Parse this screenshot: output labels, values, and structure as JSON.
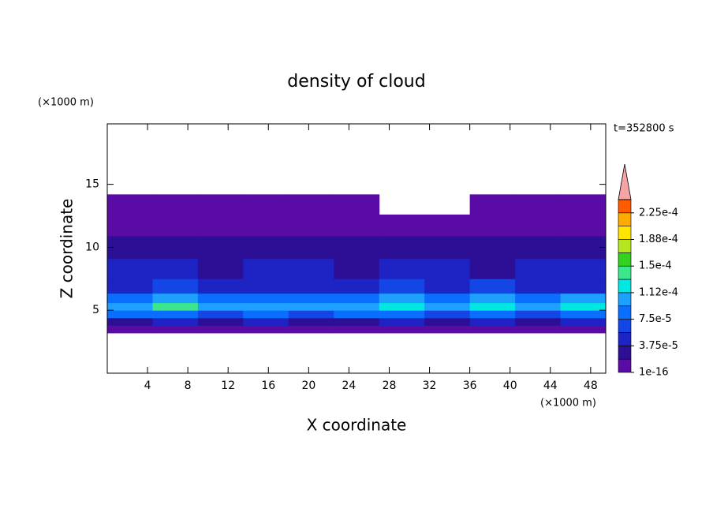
{
  "chart_data": {
    "type": "contour",
    "title": "density of cloud",
    "time_label": "t=352800 s",
    "x_label": "X coordinate",
    "y_label": "Z coordinate",
    "x_unit": "(×1000 m)",
    "y_unit": "(×1000 m)",
    "xlim": [
      0,
      49.5
    ],
    "xticks": [
      4,
      8,
      12,
      16,
      20,
      24,
      28,
      32,
      36,
      40,
      44,
      48
    ],
    "ylim": [
      0,
      19.8
    ],
    "yticks": [
      5,
      10,
      15
    ],
    "x": [
      2.25,
      6.75,
      11.25,
      15.75,
      20.25,
      24.75,
      29.25,
      33.75,
      38.25,
      42.75,
      47.25
    ],
    "y": [
      3.5,
      4.1,
      4.7,
      5.3,
      5.9,
      6.8,
      8.2,
      10.0,
      11.8,
      13.4
    ],
    "z": [
      [
        5e-06,
        5e-06,
        5e-06,
        5e-06,
        5e-06,
        5e-06,
        5e-06,
        5e-06,
        5e-06,
        5e-06,
        5e-06
      ],
      [
        2.5e-05,
        4e-05,
        2.5e-05,
        4e-05,
        2.5e-05,
        2.5e-05,
        4e-05,
        2.5e-05,
        4e-05,
        2.5e-05,
        4e-05
      ],
      [
        8e-05,
        8e-05,
        6e-05,
        8e-05,
        6e-05,
        8e-05,
        8e-05,
        6e-05,
        8e-05,
        6e-05,
        8e-05
      ],
      [
        0.00011,
        0.000135,
        0.0001,
        0.000105,
        9.8e-05,
        0.0001,
        0.000115,
        0.0001,
        0.00012,
        0.0001,
        0.000115
      ],
      [
        8e-05,
        9.5e-05,
        7.8e-05,
        8e-05,
        7.6e-05,
        8e-05,
        9.5e-05,
        8e-05,
        9.5e-05,
        8e-05,
        9.5e-05
      ],
      [
        5e-05,
        6e-05,
        5e-05,
        4e-05,
        5e-05,
        4e-05,
        6e-05,
        5e-05,
        6e-05,
        4e-05,
        5e-05
      ],
      [
        4e-05,
        4e-05,
        3e-05,
        4e-05,
        4e-05,
        3e-05,
        4e-05,
        4e-05,
        3e-05,
        4e-05,
        4e-05
      ],
      [
        2.5e-05,
        2e-05,
        2.5e-05,
        3e-05,
        2.5e-05,
        2.5e-05,
        3e-05,
        2.5e-05,
        2.5e-05,
        2e-05,
        2.5e-05
      ],
      [
        1e-05,
        1e-05,
        1e-05,
        1e-05,
        1e-05,
        1e-05,
        1e-05,
        1e-05,
        1e-05,
        1e-05,
        1e-05
      ],
      [
        5e-06,
        5e-06,
        5e-06,
        5e-06,
        5e-06,
        5e-06,
        null,
        null,
        5e-06,
        5e-06,
        5e-06
      ]
    ],
    "levels": [
      1e-16,
      1.875e-05,
      3.75e-05,
      5.625e-05,
      7.5e-05,
      9.375e-05,
      0.0001125,
      0.00013125,
      0.00015,
      0.00016875,
      0.0001875,
      0.00020625,
      0.000225,
      0.00024375
    ],
    "colors": [
      "#5a0aa5",
      "#2d0f96",
      "#1e23c3",
      "#1446e6",
      "#0a6eff",
      "#1ea0ff",
      "#00e6e1",
      "#3ce68c",
      "#32d21e",
      "#b4e61e",
      "#ffe600",
      "#ffaa00",
      "#ff5a00"
    ],
    "extend_color": "#f4a4a4",
    "colorbar_ticks": [
      {
        "value": 1e-16,
        "label": "1e-16"
      },
      {
        "value": 3.75e-05,
        "label": "3.75e-5"
      },
      {
        "value": 7.5e-05,
        "label": "7.5e-5"
      },
      {
        "value": 0.0001125,
        "label": "1.12e-4"
      },
      {
        "value": 0.00015,
        "label": "1.5e-4"
      },
      {
        "value": 0.0001875,
        "label": "1.88e-4"
      },
      {
        "value": 0.000225,
        "label": "2.25e-4"
      }
    ]
  }
}
